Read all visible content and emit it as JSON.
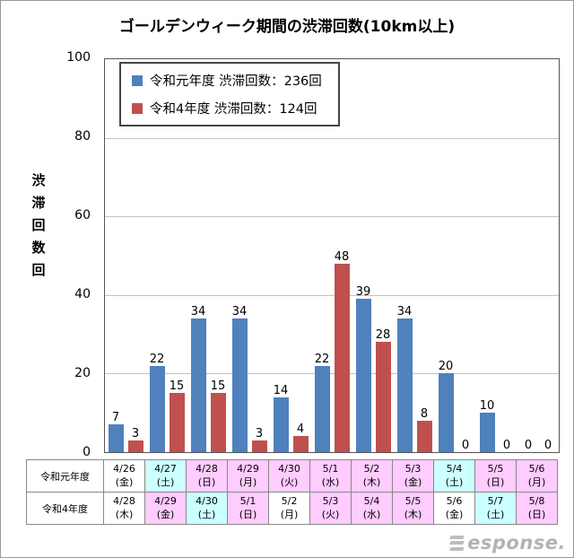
{
  "title": "ゴールデンウィーク期間の渋滞回数(10km以上)",
  "legend": [
    {
      "label": "令和元年度 渋滞回数：236回",
      "color": "#4f81bd"
    },
    {
      "label": "令和4年度 渋滞回数：124回",
      "color": "#c0504d"
    }
  ],
  "y_axis": {
    "title_chars": [
      "渋",
      "滞",
      "回",
      "数",
      "回"
    ],
    "ticks": [
      100,
      80,
      60,
      40,
      20,
      0
    ]
  },
  "chart_data": {
    "type": "bar",
    "title": "ゴールデンウィーク期間の渋滞回数(10km以上)",
    "ylabel": "渋滞回数(回)",
    "ylim": [
      0,
      100
    ],
    "gridlines": true,
    "legend_position": "top-left-inside",
    "x_labels_reiwa1": [
      "4/26(金)",
      "4/27(土)",
      "4/28(日)",
      "4/29(月)",
      "4/30(火)",
      "5/1(水)",
      "5/2(木)",
      "5/3(金)",
      "5/4(土)",
      "5/5(日)",
      "5/6(月)"
    ],
    "x_labels_reiwa4": [
      "4/28(木)",
      "4/29(金)",
      "4/30(土)",
      "5/1(日)",
      "5/2(月)",
      "5/3(火)",
      "5/4(水)",
      "5/5(木)",
      "5/6(金)",
      "5/7(土)",
      "5/8(日)"
    ],
    "series": [
      {
        "name": "令和元年度",
        "total": 236,
        "color": "#4f81bd",
        "values": [
          7,
          22,
          34,
          34,
          14,
          22,
          39,
          34,
          20,
          10,
          0
        ]
      },
      {
        "name": "令和4年度",
        "total": 124,
        "color": "#c0504d",
        "values": [
          3,
          15,
          15,
          3,
          4,
          48,
          28,
          8,
          0,
          0,
          0
        ]
      }
    ]
  },
  "table": {
    "rows": [
      {
        "header": "令和元年度",
        "cells": [
          {
            "date": "4/26",
            "dow": "(金)",
            "bg": "#ffffff"
          },
          {
            "date": "4/27",
            "dow": "(土)",
            "bg": "#ccffff"
          },
          {
            "date": "4/28",
            "dow": "(日)",
            "bg": "#ffccff"
          },
          {
            "date": "4/29",
            "dow": "(月)",
            "bg": "#ffccff"
          },
          {
            "date": "4/30",
            "dow": "(火)",
            "bg": "#ffccff"
          },
          {
            "date": "5/1",
            "dow": "(水)",
            "bg": "#ffccff"
          },
          {
            "date": "5/2",
            "dow": "(木)",
            "bg": "#ffccff"
          },
          {
            "date": "5/3",
            "dow": "(金)",
            "bg": "#ffccff"
          },
          {
            "date": "5/4",
            "dow": "(土)",
            "bg": "#ccffff"
          },
          {
            "date": "5/5",
            "dow": "(日)",
            "bg": "#ffccff"
          },
          {
            "date": "5/6",
            "dow": "(月)",
            "bg": "#ffccff"
          }
        ]
      },
      {
        "header": "令和4年度",
        "cells": [
          {
            "date": "4/28",
            "dow": "(木)",
            "bg": "#ffffff"
          },
          {
            "date": "4/29",
            "dow": "(金)",
            "bg": "#ffccff"
          },
          {
            "date": "4/30",
            "dow": "(土)",
            "bg": "#ccffff"
          },
          {
            "date": "5/1",
            "dow": "(日)",
            "bg": "#ffccff"
          },
          {
            "date": "5/2",
            "dow": "(月)",
            "bg": "#ffffff"
          },
          {
            "date": "5/3",
            "dow": "(火)",
            "bg": "#ffccff"
          },
          {
            "date": "5/4",
            "dow": "(水)",
            "bg": "#ffccff"
          },
          {
            "date": "5/5",
            "dow": "(木)",
            "bg": "#ffccff"
          },
          {
            "date": "5/6",
            "dow": "(金)",
            "bg": "#ffffff"
          },
          {
            "date": "5/7",
            "dow": "(土)",
            "bg": "#ccffff"
          },
          {
            "date": "5/8",
            "dow": "(日)",
            "bg": "#ffccff"
          }
        ]
      }
    ]
  },
  "watermark": {
    "text": "esponse."
  }
}
